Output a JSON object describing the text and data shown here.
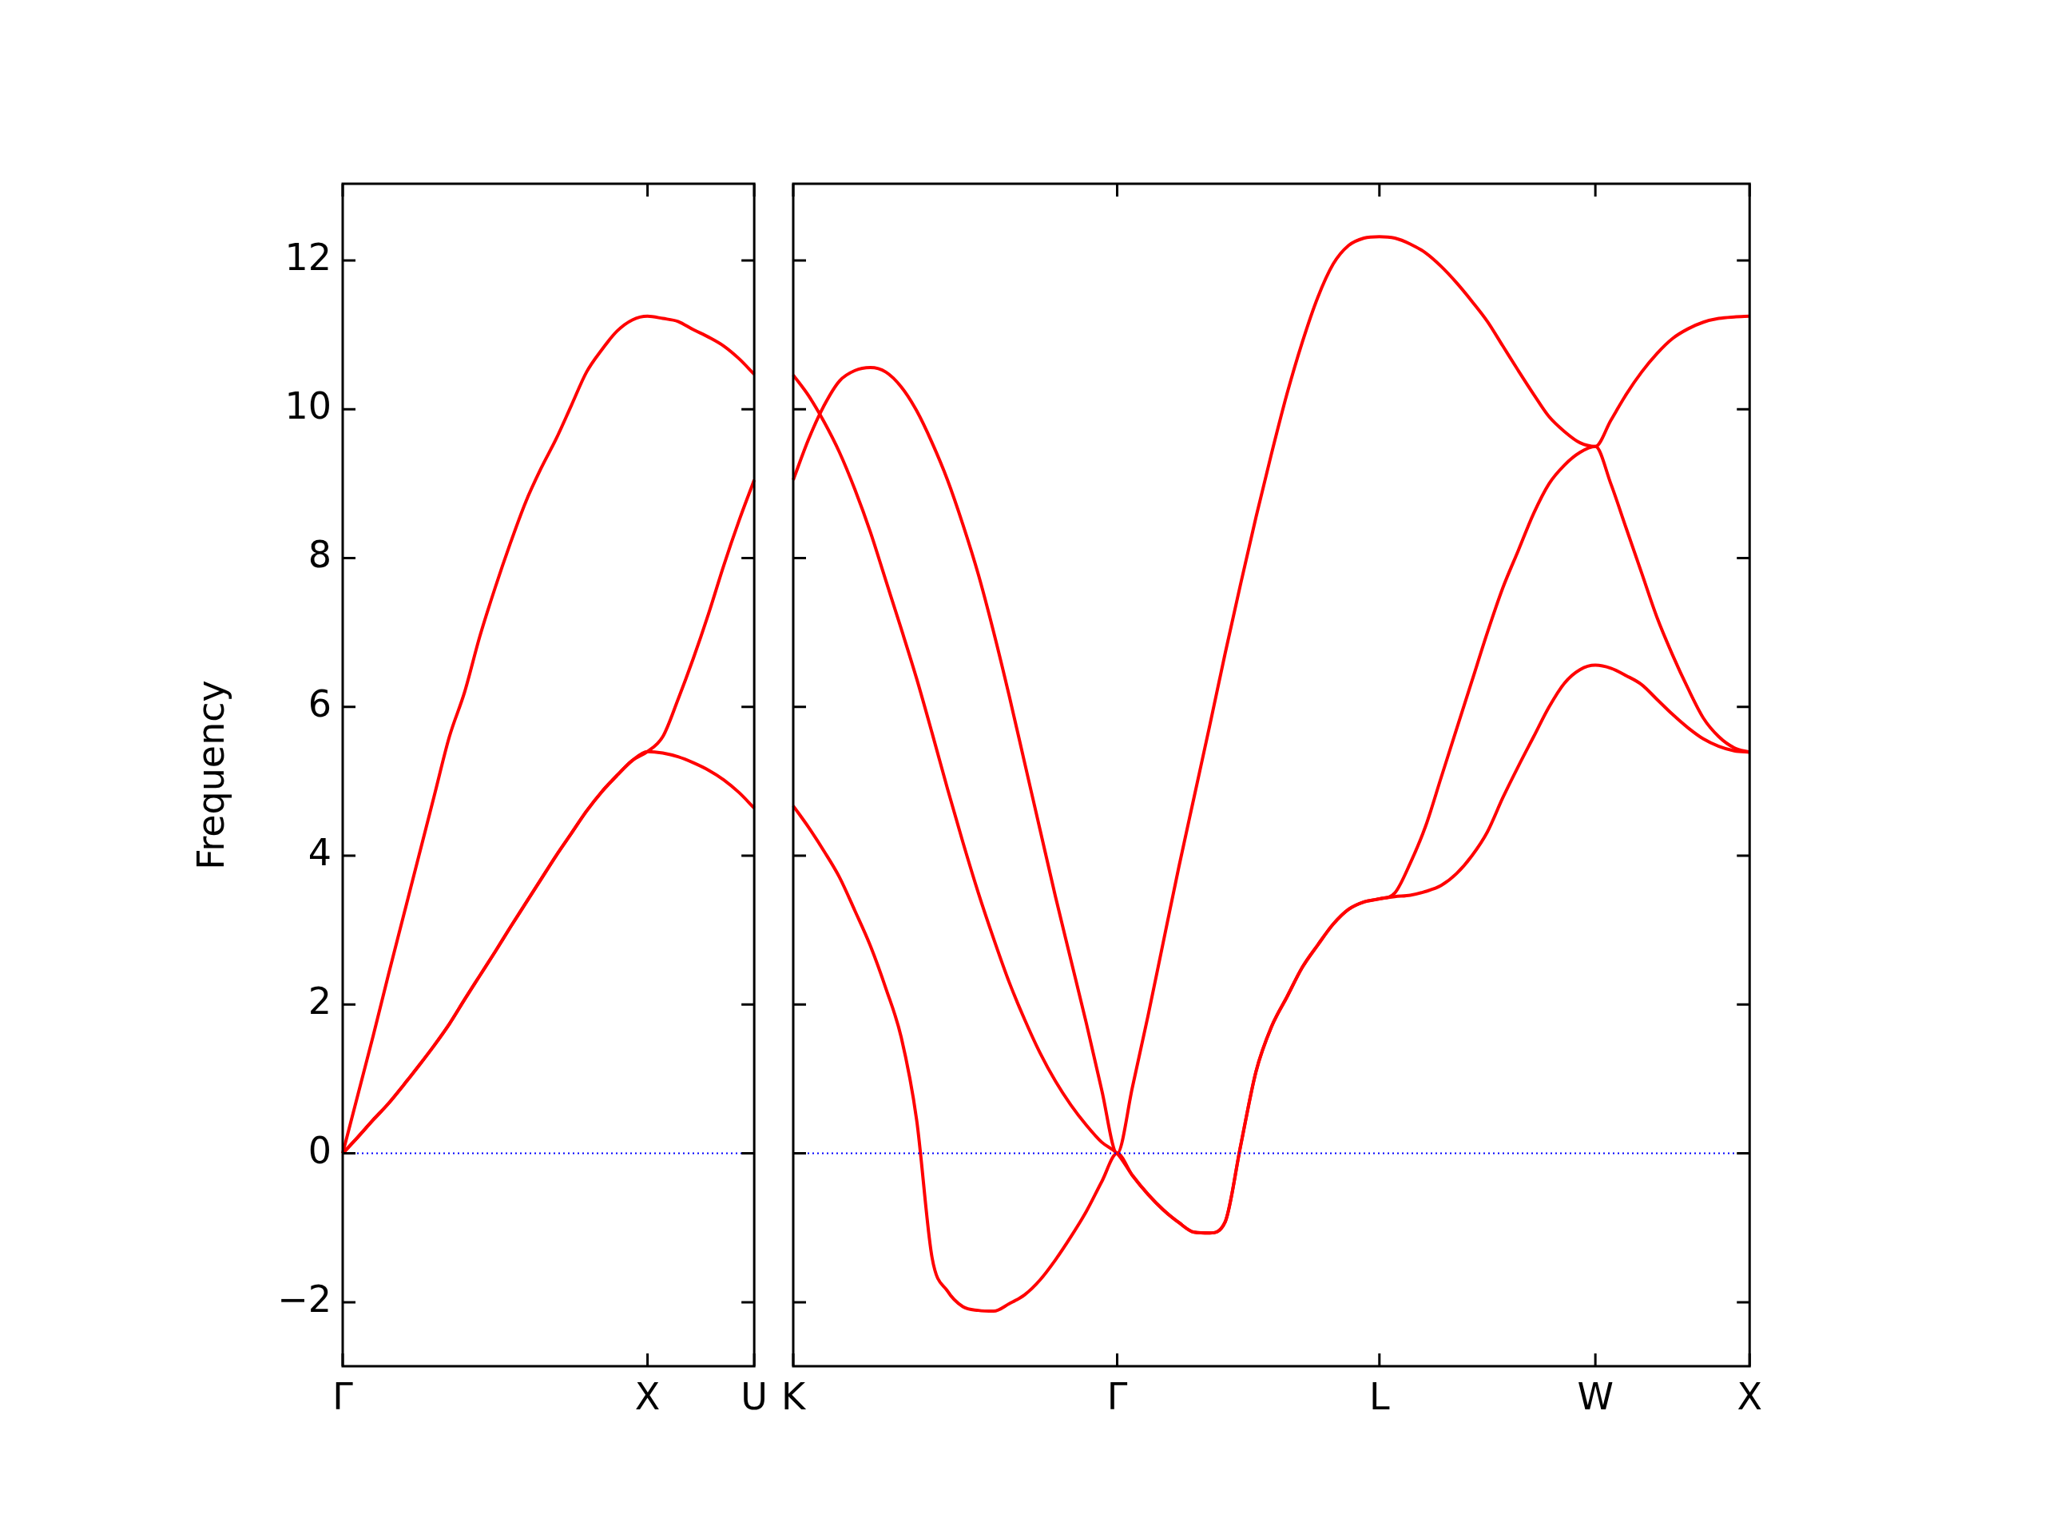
{
  "chart_data": [
    {
      "type": "line",
      "ylabel": "Frequency",
      "marker": "none",
      "line_style": "solid",
      "legend": false,
      "categories": [
        "Γ",
        null,
        null,
        null,
        null,
        null,
        null,
        null,
        null,
        null,
        null,
        null,
        null,
        null,
        null,
        null,
        null,
        null,
        null,
        null,
        "X",
        null,
        null,
        null,
        null,
        null,
        null,
        "U"
      ],
      "ylim": [
        -2.86,
        13.03
      ],
      "yticks": [
        {
          "value": -2,
          "label": "−2"
        },
        0,
        2,
        4,
        6,
        8,
        10,
        12
      ],
      "ref_lines": [
        {
          "axis": "y",
          "value": 0,
          "color": "#0000ff",
          "line_style": "dotted"
        }
      ],
      "series": [
        {
          "color": "#ff0000",
          "values": [
            0,
            0.22,
            0.45,
            0.67,
            0.92,
            1.18,
            1.45,
            1.74,
            2.07,
            2.39,
            2.71,
            3.04,
            3.36,
            3.68,
            4.0,
            4.3,
            4.6,
            4.86,
            5.08,
            5.28,
            5.4,
            5.38,
            5.33,
            5.25,
            5.15,
            5.02,
            4.85,
            4.64
          ]
        },
        {
          "color": "#ff0000",
          "values": [
            0,
            0.22,
            0.45,
            0.67,
            0.92,
            1.18,
            1.45,
            1.74,
            2.07,
            2.39,
            2.71,
            3.04,
            3.36,
            3.68,
            4.0,
            4.3,
            4.6,
            4.86,
            5.08,
            5.28,
            5.4,
            5.6,
            6.1,
            6.65,
            7.25,
            7.9,
            8.5,
            9.05
          ]
        },
        {
          "color": "#ff0000",
          "values": [
            0,
            0.79,
            1.58,
            2.4,
            3.2,
            4.0,
            4.8,
            5.6,
            6.2,
            6.95,
            7.6,
            8.2,
            8.75,
            9.2,
            9.6,
            10.05,
            10.5,
            10.8,
            11.05,
            11.2,
            11.25,
            11.22,
            11.18,
            11.07,
            10.97,
            10.85,
            10.68,
            10.47
          ]
        }
      ]
    },
    {
      "type": "line",
      "marker": "none",
      "line_style": "solid",
      "legend": false,
      "tick_labels": "x",
      "categories": [
        "K",
        null,
        null,
        null,
        null,
        null,
        null,
        null,
        null,
        null,
        null,
        null,
        null,
        null,
        null,
        null,
        null,
        null,
        null,
        null,
        null,
        "Γ",
        null,
        null,
        null,
        null,
        null,
        null,
        null,
        null,
        null,
        null,
        null,
        null,
        null,
        null,
        null,
        null,
        "L",
        null,
        null,
        null,
        null,
        null,
        null,
        null,
        null,
        null,
        null,
        null,
        null,
        null,
        "W",
        null,
        null,
        null,
        null,
        null,
        null,
        null,
        null,
        null,
        "X"
      ],
      "ylim": [
        -2.86,
        13.03
      ],
      "yticks": [
        -2,
        0,
        2,
        4,
        6,
        8,
        10,
        12
      ],
      "ref_lines": [
        {
          "axis": "y",
          "value": 0,
          "color": "#0000ff",
          "line_style": "dotted"
        }
      ],
      "series": [
        {
          "color": "#ff0000",
          "values": [
            4.67,
            4.38,
            4.06,
            3.71,
            3.26,
            2.79,
            2.22,
            1.56,
            0.45,
            -1.4,
            -1.85,
            -2.06,
            -2.11,
            -2.12,
            -2.02,
            -1.9,
            -1.7,
            -1.43,
            -1.12,
            -0.78,
            -0.38,
            0,
            -0.3,
            -0.55,
            -0.76,
            -0.93,
            -1.06,
            -1.07,
            -0.92,
            0.1,
            1.1,
            1.7,
            2.1,
            2.5,
            2.8,
            3.08,
            3.28,
            3.38,
            3.42,
            3.45,
            3.47,
            3.52,
            3.6,
            3.76,
            4.0,
            4.32,
            4.78,
            5.2,
            5.6,
            6.0,
            6.32,
            6.5,
            6.56,
            6.52,
            6.42,
            6.3,
            6.1,
            5.9,
            5.72,
            5.57,
            5.47,
            5.41,
            5.39
          ]
        },
        {
          "color": "#ff0000",
          "values": [
            9.05,
            9.6,
            10.05,
            10.38,
            10.52,
            10.56,
            10.5,
            10.3,
            9.98,
            9.55,
            9.05,
            8.45,
            7.78,
            7.0,
            6.15,
            5.25,
            4.35,
            3.45,
            2.6,
            1.75,
            0.85,
            0,
            0.9,
            1.85,
            2.85,
            3.85,
            4.8,
            5.75,
            6.72,
            7.65,
            8.55,
            9.4,
            10.2,
            10.9,
            11.5,
            11.95,
            12.2,
            12.3,
            12.32,
            12.3,
            12.22,
            12.1,
            11.92,
            11.7,
            11.45,
            11.18,
            10.85,
            10.52,
            10.2,
            9.9,
            9.7,
            9.55,
            9.5,
            9.85,
            10.2,
            10.5,
            10.75,
            10.95,
            11.08,
            11.17,
            11.22,
            11.24,
            11.25
          ]
        },
        {
          "color": "#ff0000",
          "values": [
            10.46,
            10.18,
            9.83,
            9.42,
            8.92,
            8.35,
            7.7,
            7.05,
            6.38,
            5.65,
            4.9,
            4.18,
            3.5,
            2.88,
            2.3,
            1.8,
            1.35,
            0.97,
            0.65,
            0.38,
            0.15,
            0,
            -0.3,
            -0.55,
            -0.76,
            -0.93,
            -1.06,
            -1.07,
            -0.92,
            0.1,
            1.1,
            1.7,
            2.1,
            2.5,
            2.8,
            3.08,
            3.28,
            3.38,
            3.42,
            3.5,
            3.9,
            4.4,
            5.05,
            5.7,
            6.35,
            7.0,
            7.6,
            8.1,
            8.6,
            9.0,
            9.25,
            9.42,
            9.5,
            9.0,
            8.4,
            7.8,
            7.2,
            6.7,
            6.25,
            5.85,
            5.6,
            5.45,
            5.39
          ]
        }
      ]
    }
  ]
}
